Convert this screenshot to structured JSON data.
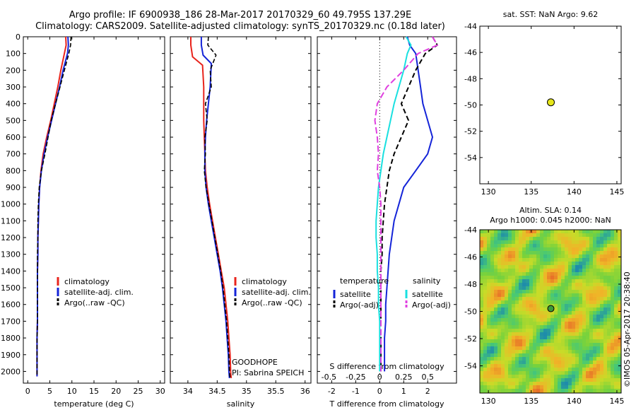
{
  "title_line1": "Argo profile: IF 6900938_186 28-Mar-2017 20170329_60 49.795S 137.29E",
  "title_line2": "Climatology: CARS2009. Satellite-adjusted climatology: synTS_20170329.nc (0.18d later)",
  "depth_ticks": [
    "0",
    "100",
    "200",
    "300",
    "400",
    "500",
    "600",
    "700",
    "800",
    "900",
    "1000",
    "1100",
    "1200",
    "1300",
    "1400",
    "1500",
    "1600",
    "1700",
    "1800",
    "1900",
    "2000"
  ],
  "colors": {
    "climatology": "#e8241c",
    "satellite": "#1424d8",
    "argo": "#000000",
    "salinity_sat": "#19e0e0",
    "salinity_argo": "#e040e0"
  },
  "chart_data": [
    {
      "type": "line",
      "xlabel": "temperature (deg C)",
      "ylabel": "",
      "xlim": [
        -1,
        31
      ],
      "ylim": [
        2070,
        0
      ],
      "xticks": [
        "0",
        "5",
        "10",
        "15",
        "20",
        "25",
        "30"
      ],
      "legend": [
        "climatology",
        "satellite-adj. clim.",
        "Argo(..raw -QC)"
      ],
      "series": [
        {
          "name": "climatology",
          "x": [
            8.6,
            8.7,
            8.3,
            7.5,
            6.8,
            6.0,
            5.2,
            4.3,
            3.5,
            3.0,
            2.7,
            2.5,
            2.4,
            2.3,
            2.3,
            2.2,
            2.2,
            2.2,
            2.2,
            2.1,
            2.1,
            2.1,
            2.1
          ],
          "y": [
            0,
            50,
            100,
            200,
            300,
            400,
            500,
            600,
            700,
            800,
            900,
            1000,
            1100,
            1200,
            1300,
            1400,
            1500,
            1600,
            1700,
            1800,
            1900,
            2000,
            2030
          ]
        },
        {
          "name": "satellite-adj. clim.",
          "x": [
            9.1,
            9.2,
            9.0,
            8.0,
            7.2,
            6.3,
            5.4,
            4.5,
            3.7,
            3.1,
            2.7,
            2.5,
            2.4,
            2.3,
            2.3,
            2.2,
            2.2,
            2.2,
            2.2,
            2.1,
            2.1,
            2.1,
            2.1
          ],
          "y": [
            0,
            50,
            100,
            200,
            300,
            400,
            500,
            600,
            700,
            800,
            900,
            1000,
            1100,
            1200,
            1300,
            1400,
            1500,
            1600,
            1700,
            1800,
            1900,
            2000,
            2030
          ]
        },
        {
          "name": "Argo(..raw -QC)",
          "x": [
            9.8,
            9.7,
            9.3,
            8.3,
            7.3,
            6.3,
            5.3,
            4.6,
            3.9,
            3.1,
            2.6,
            2.4,
            2.3,
            2.3,
            2.2,
            2.2,
            2.2,
            2.2,
            2.2,
            2.1,
            2.1,
            2.1,
            2.1
          ],
          "y": [
            0,
            50,
            100,
            200,
            300,
            400,
            500,
            600,
            700,
            800,
            900,
            1000,
            1100,
            1200,
            1300,
            1400,
            1500,
            1600,
            1700,
            1800,
            1900,
            2000,
            2030
          ]
        }
      ]
    },
    {
      "type": "line",
      "xlabel": "salinity",
      "ylabel": "",
      "xlim": [
        33.7,
        36.1
      ],
      "ylim": [
        2070,
        0
      ],
      "xticks": [
        "34",
        "34.5",
        "35",
        "35.5",
        "36"
      ],
      "legend": [
        "climatology",
        "satellite-adj. clim.",
        "Argo(..raw -QC)"
      ],
      "annotations": [
        "GOODHOPE",
        "PI: Sabrina SPEICH"
      ],
      "series": [
        {
          "name": "climatology",
          "x": [
            34.05,
            34.05,
            34.08,
            34.25,
            34.27,
            34.27,
            34.27,
            34.28,
            34.29,
            34.3,
            34.33,
            34.37,
            34.42,
            34.47,
            34.52,
            34.57,
            34.62,
            34.65,
            34.68,
            34.7,
            34.72,
            34.73,
            34.74
          ],
          "y": [
            0,
            50,
            120,
            170,
            300,
            400,
            500,
            600,
            700,
            800,
            900,
            1000,
            1100,
            1200,
            1300,
            1400,
            1500,
            1600,
            1700,
            1800,
            1900,
            2000,
            2040
          ]
        },
        {
          "name": "satellite-adj. clim.",
          "x": [
            34.23,
            34.23,
            34.26,
            34.4,
            34.38,
            34.35,
            34.32,
            34.3,
            34.29,
            34.29,
            34.31,
            34.35,
            34.4,
            34.45,
            34.5,
            34.55,
            34.59,
            34.62,
            34.65,
            34.67,
            34.69,
            34.7,
            34.71
          ],
          "y": [
            0,
            50,
            110,
            160,
            300,
            400,
            500,
            600,
            700,
            800,
            900,
            1000,
            1100,
            1200,
            1300,
            1400,
            1500,
            1600,
            1700,
            1800,
            1900,
            2000,
            2040
          ]
        },
        {
          "name": "Argo(..raw -QC)",
          "x": [
            34.35,
            34.34,
            34.48,
            34.38,
            34.4,
            34.3,
            34.33,
            34.29,
            34.3,
            34.28,
            34.31,
            34.36,
            34.41,
            34.46,
            34.51,
            34.56,
            34.6,
            34.63,
            34.66,
            34.68,
            34.7,
            34.71,
            34.72
          ],
          "y": [
            0,
            50,
            110,
            200,
            300,
            400,
            500,
            600,
            700,
            800,
            900,
            1000,
            1100,
            1200,
            1300,
            1400,
            1500,
            1600,
            1700,
            1800,
            1900,
            2000,
            2040
          ]
        }
      ]
    },
    {
      "type": "line",
      "xlabel": "T difference from climatology",
      "xlabel2": "S difference from climatology",
      "xlim": [
        -2.6,
        3.2
      ],
      "ylim": [
        2070,
        0
      ],
      "xticks": [
        "-2",
        "-1",
        "0",
        "1",
        "2"
      ],
      "xticks_top": [
        "-0.5",
        "-0.25",
        "0",
        "0.25",
        "0.5"
      ],
      "legend_titles": [
        "temperature",
        "salinity"
      ],
      "legend": [
        "satellite",
        "Argo(-adj)",
        "satellite",
        "Argo(-adj)"
      ],
      "series": [
        {
          "name": "temperature satellite",
          "x": [
            1.15,
            1.25,
            1.5,
            1.6,
            1.7,
            1.8,
            2.0,
            2.2,
            2.0,
            1.5,
            1.0,
            0.8,
            0.6,
            0.5,
            0.4,
            0.35,
            0.3,
            0.25,
            0.25,
            0.2,
            0.2,
            0.2
          ],
          "y": [
            0,
            50,
            100,
            200,
            300,
            400,
            500,
            600,
            700,
            800,
            900,
            1000,
            1100,
            1200,
            1300,
            1400,
            1500,
            1600,
            1700,
            1800,
            1900,
            2000
          ]
        },
        {
          "name": "temperature Argo(-adj)",
          "x": [
            2.2,
            2.4,
            1.9,
            1.5,
            1.2,
            0.9,
            1.2,
            0.9,
            0.6,
            0.4,
            0.3,
            0.2,
            0.15,
            0.1,
            0.1,
            0.05,
            0.05,
            0.05,
            0.05,
            0.05,
            0.05,
            0.05
          ],
          "y": [
            0,
            50,
            100,
            200,
            300,
            400,
            500,
            600,
            700,
            800,
            900,
            1000,
            1100,
            1200,
            1300,
            1400,
            1500,
            1600,
            1700,
            1800,
            1900,
            2000
          ]
        },
        {
          "name": "salinity satellite",
          "x": [
            1.1,
            1.3,
            1.15,
            1.0,
            0.8,
            0.6,
            0.45,
            0.3,
            0.15,
            0.05,
            -0.05,
            -0.1,
            -0.15,
            -0.15,
            -0.1,
            -0.1,
            -0.05,
            -0.05,
            0,
            0,
            0,
            0
          ],
          "y": [
            0,
            50,
            100,
            200,
            300,
            400,
            500,
            600,
            700,
            800,
            900,
            1000,
            1100,
            1200,
            1300,
            1400,
            1500,
            1600,
            1700,
            1800,
            1900,
            2000
          ]
        },
        {
          "name": "salinity Argo(-adj)",
          "x": [
            2.2,
            2.4,
            1.6,
            1.0,
            0.3,
            -0.1,
            -0.2,
            -0.1,
            -0.05,
            -0.1,
            0.0,
            0.05,
            0.05,
            0.05,
            0.05,
            0.05,
            0.05,
            0.05,
            0.05,
            0.05,
            0.05,
            0.05
          ],
          "y": [
            0,
            50,
            100,
            200,
            300,
            400,
            500,
            600,
            700,
            800,
            900,
            1000,
            1100,
            1200,
            1300,
            1400,
            1500,
            1600,
            1700,
            1800,
            1900,
            2000
          ]
        }
      ]
    },
    {
      "type": "scatter",
      "title": "sat. SST: NaN Argo: 9.62",
      "xlim": [
        129,
        145.5
      ],
      "ylim": [
        -56,
        -44
      ],
      "xticks": [
        "130",
        "135",
        "140",
        "145"
      ],
      "yticks": [
        "-44",
        "-46",
        "-48",
        "-50",
        "-52",
        "-54"
      ],
      "points": [
        {
          "x": 137.29,
          "y": -49.795
        }
      ]
    },
    {
      "type": "heatmap",
      "title": "Altim. SLA: 0.14",
      "subtitle": "Argo h1000: 0.045 h2000: NaN",
      "xlim": [
        129,
        145.5
      ],
      "ylim": [
        -56,
        -44
      ],
      "xticks": [
        "130",
        "135",
        "140",
        "145"
      ],
      "yticks": [
        "-44",
        "-46",
        "-48",
        "-50",
        "-52",
        "-54"
      ],
      "points": [
        {
          "x": 137.29,
          "y": -49.795
        }
      ],
      "side_label": "©IMOS 05-Apr-2017 20:38:40"
    }
  ]
}
